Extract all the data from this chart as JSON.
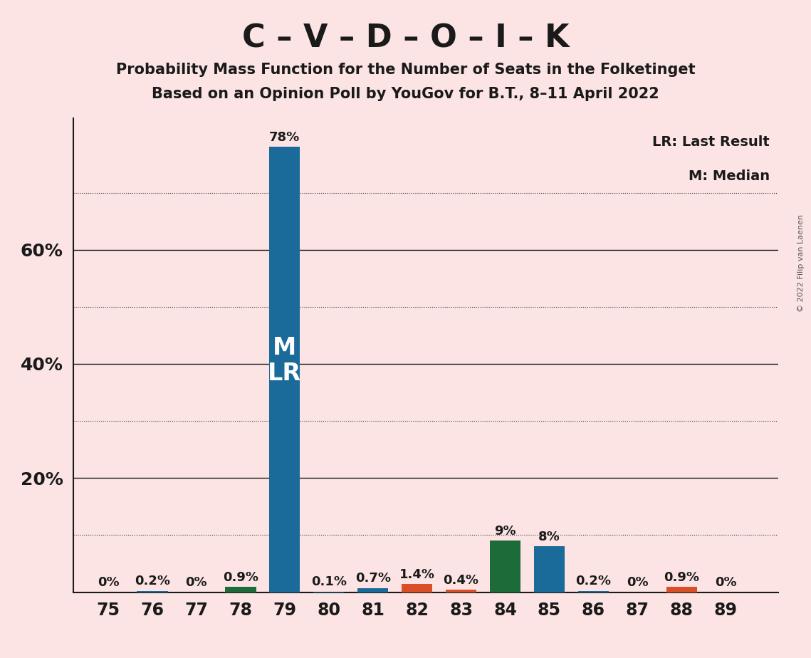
{
  "title": "C – V – D – O – I – K",
  "subtitle1": "Probability Mass Function for the Number of Seats in the Folketinget",
  "subtitle2": "Based on an Opinion Poll by YouGov for B.T., 8–11 April 2022",
  "copyright": "© 2022 Filip van Laenen",
  "seats": [
    75,
    76,
    77,
    78,
    79,
    80,
    81,
    82,
    83,
    84,
    85,
    86,
    87,
    88,
    89
  ],
  "probabilities": [
    0.0,
    0.2,
    0.0,
    0.9,
    78.0,
    0.1,
    0.7,
    1.4,
    0.4,
    9.0,
    8.0,
    0.2,
    0.0,
    0.9,
    0.0
  ],
  "labels": [
    "0%",
    "0.2%",
    "0%",
    "0.9%",
    "78%",
    "0.1%",
    "0.7%",
    "1.4%",
    "0.4%",
    "9%",
    "8%",
    "0.2%",
    "0%",
    "0.9%",
    "0%"
  ],
  "bar_colors": [
    "#1a6b9a",
    "#1a6b9a",
    "#1a6b9a",
    "#1e6b3a",
    "#1a6b9a",
    "#1a6b9a",
    "#1a6b9a",
    "#d94f2a",
    "#d94f2a",
    "#1e6b3a",
    "#1a6b9a",
    "#1a6b9a",
    "#1a6b9a",
    "#d94f2a",
    "#1a6b9a"
  ],
  "median_seat": 79,
  "lr_seat": 79,
  "legend_lr": "LR: Last Result",
  "legend_m": "M: Median",
  "background_color": "#fce4e4",
  "ytick_labels": [
    "20%",
    "40%",
    "60%"
  ],
  "ytick_values": [
    20,
    40,
    60
  ],
  "dotted_lines": [
    10,
    30,
    50,
    70
  ],
  "ylim_max": 83,
  "xlim_min": 74.2,
  "xlim_max": 90.2
}
